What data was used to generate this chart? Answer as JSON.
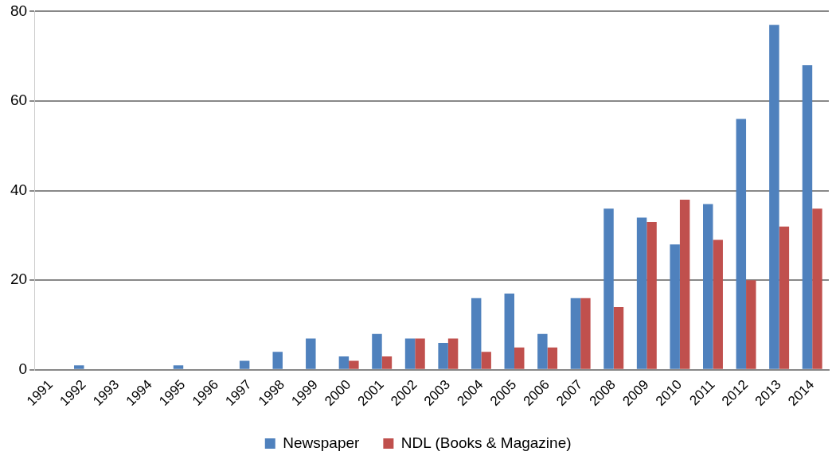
{
  "chart_data": {
    "type": "bar",
    "categories": [
      "1991",
      "1992",
      "1993",
      "1994",
      "1995",
      "1996",
      "1997",
      "1998",
      "1999",
      "2000",
      "2001",
      "2002",
      "2003",
      "2004",
      "2005",
      "2006",
      "2007",
      "2008",
      "2009",
      "2010",
      "2011",
      "2012",
      "2013",
      "2014"
    ],
    "series": [
      {
        "name": "Newspaper",
        "color": "#4f81bd",
        "values": [
          0,
          1,
          0,
          0,
          1,
          0,
          2,
          4,
          7,
          3,
          8,
          7,
          6,
          16,
          17,
          8,
          16,
          36,
          34,
          28,
          37,
          56,
          77,
          68
        ]
      },
      {
        "name": "NDL (Books & Magazine)",
        "color": "#c0504d",
        "values": [
          0,
          0,
          0,
          0,
          0,
          0,
          0,
          0,
          0,
          2,
          3,
          7,
          7,
          4,
          5,
          5,
          16,
          14,
          33,
          38,
          29,
          20,
          32,
          36
        ]
      }
    ],
    "ylim": [
      0,
      80
    ],
    "yticks": [
      0,
      20,
      40,
      60,
      80
    ],
    "grid": "y",
    "legend": "bottom"
  }
}
